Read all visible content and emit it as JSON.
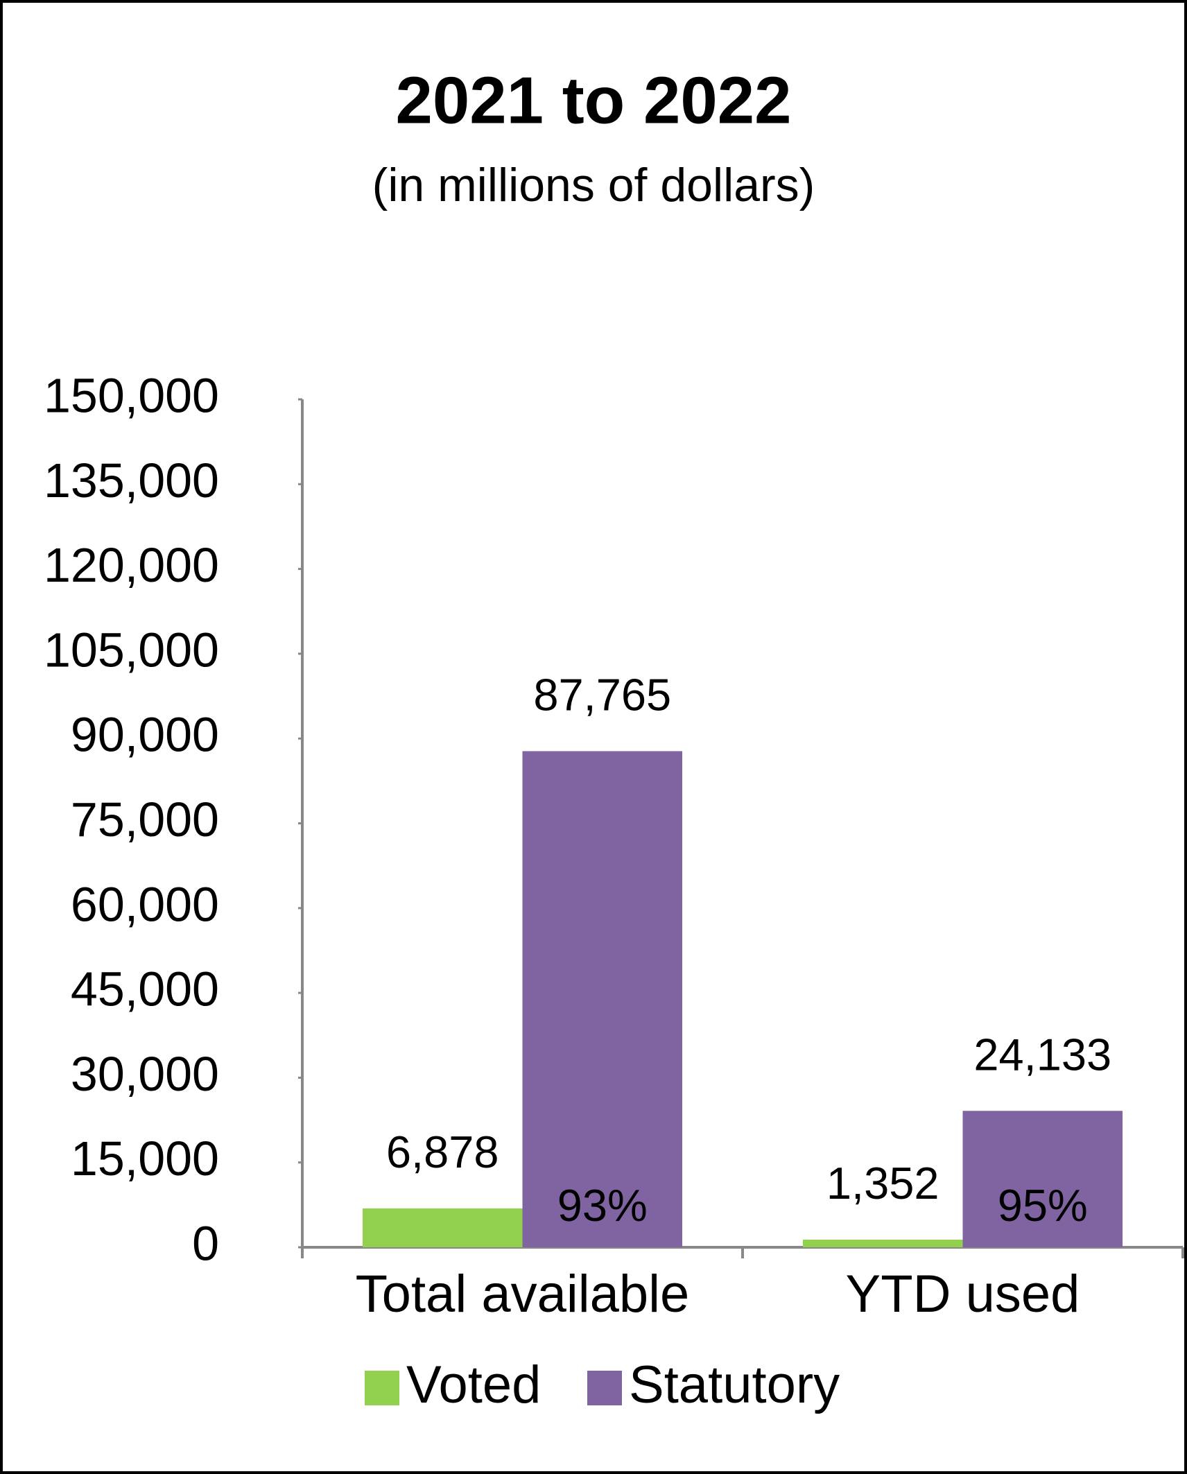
{
  "chart_data": {
    "type": "bar",
    "title": "2021 to 2022",
    "subtitle": "(in millions of dollars)",
    "categories": [
      "Total available",
      "YTD used"
    ],
    "series": [
      {
        "name": "Voted",
        "color": "#92d050",
        "values": [
          6878,
          1352
        ],
        "value_labels": [
          "6,878",
          "1,352"
        ]
      },
      {
        "name": "Statutory",
        "color": "#8064a2",
        "values": [
          87765,
          24133
        ],
        "value_labels": [
          "87,765",
          "24,133"
        ],
        "share_labels": [
          "93%",
          "95%"
        ]
      }
    ],
    "ylim": [
      0,
      150000
    ],
    "yticks": [
      0,
      {
        "value": 15000,
        "label": "15,000"
      },
      {
        "value": 30000,
        "label": "30,000"
      },
      {
        "value": 45000,
        "label": "45,000"
      },
      {
        "value": 60000,
        "label": "60,000"
      },
      {
        "value": 75000,
        "label": "75,000"
      },
      {
        "value": 90000,
        "label": "90,000"
      },
      {
        "value": 105000,
        "label": "105,000"
      },
      {
        "value": 120000,
        "label": "120,000"
      },
      {
        "value": 135000,
        "label": "135,000"
      },
      {
        "value": 150000,
        "label": "150,000"
      }
    ],
    "grid": false,
    "legend": "bottom"
  }
}
